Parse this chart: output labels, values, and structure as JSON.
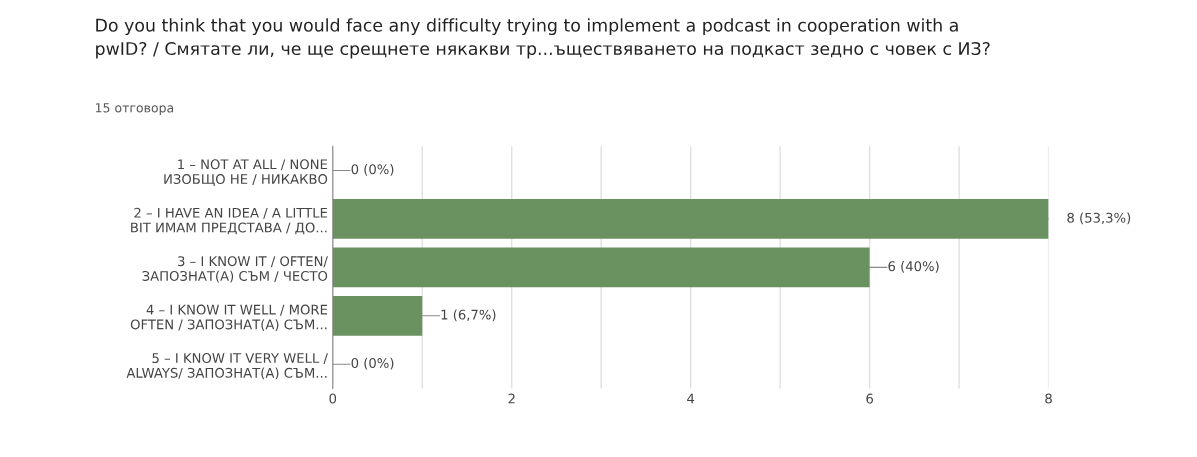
{
  "chart_data": {
    "type": "bar",
    "orientation": "horizontal",
    "title": "Do you think that you would face any difficulty trying to implement a podcast in cooperation with a\npwID? / Смятате ли, че ще срещнете някакви тр...ъществяването на подкаст зедно с човек с ИЗ?",
    "subtitle": "15 отговора",
    "categories": [
      "1 – NOT AT ALL / NONE\nИЗОБЩО НЕ / НИКАКВО",
      "2 – I HAVE AN IDEA / A LITTLE\nBIT ИМАМ ПРЕДСТАВА / ДО...",
      "3 – I KNOW IT / OFTEN/\nЗАПОЗНАТ(А) СЪМ / ЧЕСТО",
      "4 – I KNOW IT WELL / MORE\nOFTEN / ЗАПОЗНАТ(А) СЪМ...",
      "5 – I KNOW IT VERY WELL /\nALWAYS/ ЗАПОЗНАТ(А) СЪМ..."
    ],
    "values": [
      0,
      8,
      6,
      1,
      0
    ],
    "value_labels": [
      "0 (0%)",
      "8 (53,3%)",
      "6 (40%)",
      "1 (6,7%)",
      "0 (0%)"
    ],
    "color": "#6a9160",
    "xlim": [
      0,
      8
    ],
    "xticks": [
      0,
      {
        "value": 1,
        "label": null
      },
      2,
      {
        "value": 3,
        "label": null
      },
      4,
      {
        "value": 5,
        "label": null
      },
      6,
      {
        "value": 7,
        "label": null
      },
      8
    ],
    "grid": "x"
  }
}
